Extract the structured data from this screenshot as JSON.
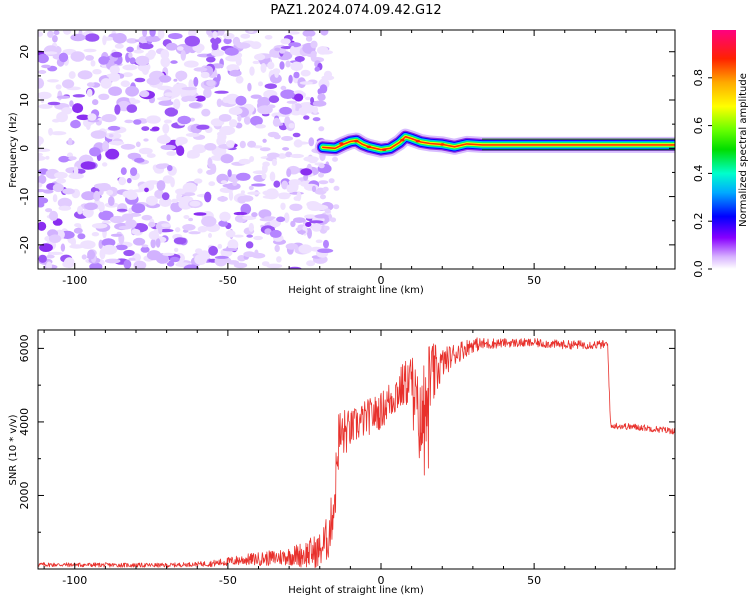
{
  "title": "PAZ1.2024.074.09.42.G12",
  "chart_data": [
    {
      "type": "heatmap",
      "xlabel": "Height of straight line (km)",
      "ylabel": "Frequency (Hz)",
      "xlim": [
        -112,
        96
      ],
      "ylim": [
        -25,
        24.5
      ],
      "xticks": [
        -100,
        -50,
        0,
        50
      ],
      "xtick_labels": [
        "-100",
        "-50",
        "0",
        "50"
      ],
      "yticks": [
        -20,
        -10,
        0,
        10,
        20
      ],
      "ytick_labels": [
        "-20",
        "-10",
        "0",
        "10",
        "20"
      ],
      "noise_region": {
        "x_from": -112,
        "x_to": -19,
        "freq_from": -25,
        "freq_to": 24.5
      },
      "tone_trace": [
        [
          -19,
          0.2
        ],
        [
          -15,
          0.0
        ],
        [
          -12,
          0.9
        ],
        [
          -10,
          1.4
        ],
        [
          -8,
          1.6
        ],
        [
          -6,
          0.8
        ],
        [
          -4,
          0.3
        ],
        [
          0,
          -0.3
        ],
        [
          3,
          0.0
        ],
        [
          6,
          1.2
        ],
        [
          8,
          2.4
        ],
        [
          10,
          2.0
        ],
        [
          13,
          1.3
        ],
        [
          16,
          1.0
        ],
        [
          20,
          0.8
        ],
        [
          24,
          0.3
        ],
        [
          28,
          0.9
        ],
        [
          33,
          0.7
        ],
        [
          40,
          0.7
        ],
        [
          60,
          0.7
        ],
        [
          80,
          0.7
        ],
        [
          96,
          0.7
        ]
      ],
      "colorbar": {
        "label": "Normalized spectral amplitude",
        "range": [
          0,
          1
        ],
        "ticks": [
          0.0,
          0.2,
          0.4,
          0.6,
          0.8
        ],
        "tick_labels": [
          "0.0",
          "0.2",
          "0.4",
          "0.6",
          "0.8"
        ],
        "colormap": "gist_ncar"
      }
    },
    {
      "type": "line",
      "xlabel": "Height of straight line (km)",
      "ylabel": "SNR (10 * v/v)",
      "xlim": [
        -112,
        96
      ],
      "ylim": [
        0,
        6500
      ],
      "xticks": [
        -100,
        -50,
        0,
        50
      ],
      "xtick_labels": [
        "-100",
        "-50",
        "0",
        "50"
      ],
      "yticks": [
        2000,
        4000,
        6000
      ],
      "ytick_labels": [
        "2000",
        "4000",
        "6000"
      ],
      "color": "#e8312c",
      "envelope": {
        "x": [
          -112,
          -70,
          -55,
          -45,
          -35,
          -25,
          -20,
          -17,
          -15,
          -14,
          -12,
          -10,
          -5,
          0,
          5,
          10,
          13,
          15,
          20,
          25,
          30,
          40,
          50,
          60,
          70,
          74,
          75,
          76,
          85,
          96
        ],
        "y": [
          120,
          100,
          150,
          250,
          300,
          400,
          500,
          900,
          2000,
          3500,
          3700,
          3800,
          4100,
          4300,
          4800,
          5200,
          3800,
          5000,
          5600,
          5900,
          6100,
          6150,
          6150,
          6100,
          6100,
          6100,
          3850,
          3900,
          3850,
          3750
        ]
      },
      "noise_amplitude": {
        "x": [
          -112,
          -60,
          -50,
          -30,
          -20,
          -16,
          -14,
          -10,
          0,
          10,
          14,
          20,
          30,
          40,
          74,
          76,
          96
        ],
        "y": [
          60,
          60,
          120,
          250,
          500,
          700,
          900,
          500,
          500,
          700,
          1400,
          400,
          200,
          120,
          120,
          90,
          90
        ]
      }
    }
  ]
}
